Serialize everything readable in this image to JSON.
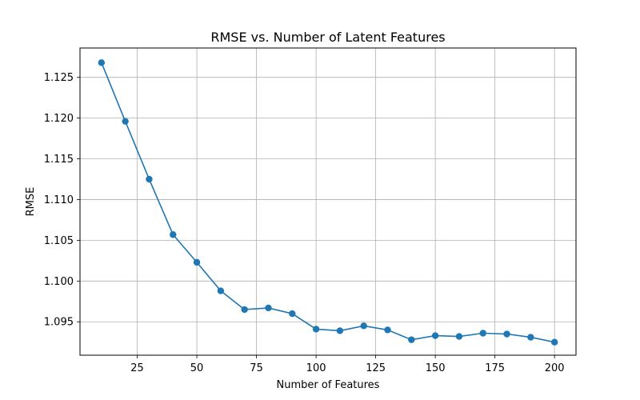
{
  "chart_data": {
    "type": "line",
    "title": "RMSE vs. Number of Latent Features",
    "xlabel": "Number of Features",
    "ylabel": "RMSE",
    "xlim": [
      1,
      209
    ],
    "ylim": [
      1.0909,
      1.1286
    ],
    "grid": true,
    "line_color": "#1f77b4",
    "marker": "circle",
    "x_ticks": [
      25,
      50,
      75,
      100,
      125,
      150,
      175,
      200
    ],
    "x_tick_labels": [
      "25",
      "50",
      "75",
      "100",
      "125",
      "150",
      "175",
      "200"
    ],
    "y_ticks": [
      1.095,
      1.1,
      1.105,
      1.11,
      1.115,
      1.12,
      1.125
    ],
    "y_tick_labels": [
      "1.095",
      "1.100",
      "1.105",
      "1.110",
      "1.115",
      "1.120",
      "1.125"
    ],
    "series": [
      {
        "x": [
          10,
          20,
          30,
          40,
          50,
          60,
          70,
          80,
          90,
          100,
          110,
          120,
          130,
          140,
          150,
          160,
          170,
          180,
          190,
          200
        ],
        "values": [
          1.1268,
          1.1196,
          1.1125,
          1.1057,
          1.1023,
          1.0988,
          1.0965,
          1.0967,
          1.096,
          1.0941,
          1.0939,
          1.0945,
          1.094,
          1.0928,
          1.0933,
          1.0932,
          1.0936,
          1.0935,
          1.0931,
          1.0925
        ]
      }
    ]
  }
}
